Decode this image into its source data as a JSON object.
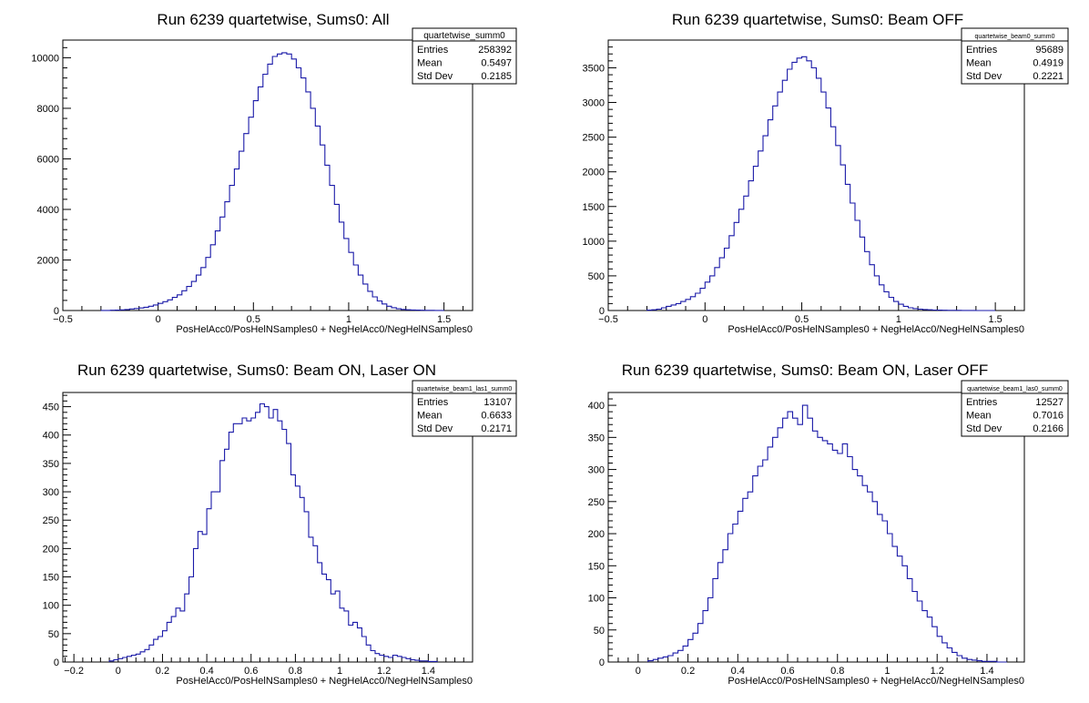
{
  "chart_data": [
    {
      "type": "histogram",
      "title": "Run 6239 quartetwise, Sums0: All",
      "xlabel": "PosHelAcc0/PosHelNSamples0 + NegHelAcc0/NegHelNSamples0",
      "xlim": [
        -0.5,
        1.65
      ],
      "ylim": [
        0,
        10700
      ],
      "xticks": [
        -0.5,
        0,
        0.5,
        1,
        1.5
      ],
      "xtick_labels": [
        "−0.5",
        "0",
        "0.5",
        "1",
        "1.5"
      ],
      "yticks": [
        0,
        2000,
        4000,
        6000,
        8000,
        10000
      ],
      "stats": {
        "name": "quartetwise_summ0",
        "entries": "258392",
        "mean": "0.5497",
        "std_dev": "0.2185"
      },
      "stat_labels": {
        "entries": "Entries",
        "mean": "Mean",
        "std_dev": "Std Dev"
      },
      "bin_width": 0.025,
      "bin_edges": [
        -0.3,
        1.5
      ],
      "values": [
        5,
        5,
        10,
        15,
        25,
        40,
        60,
        80,
        100,
        130,
        170,
        220,
        280,
        350,
        420,
        520,
        620,
        780,
        950,
        1150,
        1400,
        1700,
        2100,
        2600,
        3150,
        3700,
        4300,
        4950,
        5600,
        6300,
        7000,
        7650,
        8300,
        8850,
        9350,
        9750,
        10050,
        10150,
        10200,
        10150,
        9950,
        9600,
        9200,
        8650,
        8000,
        7300,
        6550,
        5750,
        4950,
        4200,
        3500,
        2850,
        2300,
        1800,
        1400,
        1050,
        760,
        540,
        380,
        260,
        170,
        110,
        70,
        45,
        30,
        20,
        15,
        10,
        8,
        6,
        5,
        3
      ]
    },
    {
      "type": "histogram",
      "title": "Run 6239 quartetwise, Sums0: Beam OFF",
      "xlabel": "PosHelAcc0/PosHelNSamples0 + NegHelAcc0/NegHelNSamples0",
      "xlim": [
        -0.5,
        1.65
      ],
      "ylim": [
        0,
        3900
      ],
      "xticks": [
        -0.5,
        0,
        0.5,
        1,
        1.5
      ],
      "xtick_labels": [
        "−0.5",
        "0",
        "0.5",
        "1",
        "1.5"
      ],
      "yticks": [
        0,
        500,
        1000,
        1500,
        2000,
        2500,
        3000,
        3500
      ],
      "stats": {
        "name": "quartetwise_beam0_summ0",
        "entries": "95689",
        "mean": "0.4919",
        "std_dev": "0.2221"
      },
      "stat_labels": {
        "entries": "Entries",
        "mean": "Mean",
        "std_dev": "Std Dev"
      },
      "bin_width": 0.025,
      "bin_edges": [
        -0.3,
        1.5
      ],
      "values": [
        5,
        10,
        20,
        40,
        60,
        80,
        100,
        130,
        160,
        200,
        250,
        320,
        410,
        500,
        620,
        760,
        900,
        1080,
        1270,
        1460,
        1650,
        1870,
        2080,
        2300,
        2520,
        2750,
        2950,
        3150,
        3320,
        3480,
        3580,
        3640,
        3660,
        3600,
        3500,
        3350,
        3150,
        2920,
        2650,
        2380,
        2100,
        1820,
        1550,
        1300,
        1060,
        850,
        660,
        500,
        370,
        270,
        190,
        130,
        90,
        60,
        40,
        28,
        20,
        14,
        10,
        7,
        5,
        4,
        3,
        2,
        2,
        1,
        1,
        1,
        0,
        0,
        0,
        0
      ]
    },
    {
      "type": "histogram",
      "title": "Run 6239 quartetwise, Sums0: Beam ON, Laser ON",
      "xlabel": "PosHelAcc0/PosHelNSamples0 + NegHelAcc0/NegHelNSamples0",
      "xlim": [
        -0.25,
        1.6
      ],
      "ylim": [
        0,
        475
      ],
      "xticks": [
        -0.2,
        0,
        0.2,
        0.4,
        0.6,
        0.8,
        1,
        1.2,
        1.4
      ],
      "xtick_labels": [
        "−0.2",
        "0",
        "0.2",
        "0.4",
        "0.6",
        "0.8",
        "1",
        "1.2",
        "1.4"
      ],
      "yticks": [
        0,
        50,
        100,
        150,
        200,
        250,
        300,
        350,
        400,
        450
      ],
      "stats": {
        "name": "quartetwise_beam1_las1_summ0",
        "entries": "13107",
        "mean": "0.6633",
        "std_dev": "0.2171"
      },
      "stat_labels": {
        "entries": "Entries",
        "mean": "Mean",
        "std_dev": "Std Dev"
      },
      "bin_width": 0.02,
      "bin_edges": [
        -0.04,
        1.44
      ],
      "values": [
        2,
        4,
        6,
        8,
        10,
        12,
        14,
        18,
        22,
        30,
        40,
        45,
        55,
        70,
        80,
        95,
        90,
        120,
        150,
        200,
        230,
        225,
        270,
        300,
        300,
        355,
        375,
        405,
        420,
        420,
        430,
        425,
        430,
        440,
        455,
        450,
        430,
        445,
        425,
        410,
        385,
        330,
        310,
        290,
        265,
        220,
        205,
        175,
        155,
        145,
        120,
        125,
        95,
        90,
        65,
        70,
        60,
        45,
        30,
        20,
        15,
        12,
        10,
        8,
        12,
        10,
        8,
        6,
        4,
        3,
        2,
        2,
        1,
        1
      ]
    },
    {
      "type": "histogram",
      "title": "Run 6239 quartetwise, Sums0: Beam ON, Laser OFF",
      "xlabel": "PosHelAcc0/PosHelNSamples0 + NegHelAcc0/NegHelNSamples0",
      "xlim": [
        -0.12,
        1.55
      ],
      "ylim": [
        0,
        420
      ],
      "xticks": [
        0,
        0.2,
        0.4,
        0.6,
        0.8,
        1,
        1.2,
        1.4
      ],
      "xtick_labels": [
        "0",
        "0.2",
        "0.4",
        "0.6",
        "0.8",
        "1",
        "1.2",
        "1.4"
      ],
      "yticks": [
        0,
        50,
        100,
        150,
        200,
        250,
        300,
        350,
        400
      ],
      "stats": {
        "name": "quartetwise_beam1_las0_summ0",
        "entries": "12527",
        "mean": "0.7016",
        "std_dev": "0.2166"
      },
      "stat_labels": {
        "entries": "Entries",
        "mean": "Mean",
        "std_dev": "Std Dev"
      },
      "bin_width": 0.02,
      "bin_edges": [
        0.04,
        1.48
      ],
      "values": [
        2,
        4,
        6,
        8,
        10,
        14,
        18,
        25,
        35,
        45,
        60,
        80,
        100,
        130,
        155,
        175,
        200,
        215,
        235,
        255,
        265,
        290,
        305,
        315,
        335,
        350,
        365,
        380,
        390,
        380,
        370,
        400,
        380,
        360,
        350,
        345,
        340,
        330,
        325,
        340,
        320,
        300,
        290,
        275,
        265,
        250,
        230,
        220,
        200,
        180,
        165,
        150,
        130,
        110,
        95,
        80,
        70,
        55,
        40,
        30,
        22,
        15,
        10,
        6,
        4,
        3,
        2,
        1,
        1,
        1,
        0,
        0
      ]
    }
  ]
}
